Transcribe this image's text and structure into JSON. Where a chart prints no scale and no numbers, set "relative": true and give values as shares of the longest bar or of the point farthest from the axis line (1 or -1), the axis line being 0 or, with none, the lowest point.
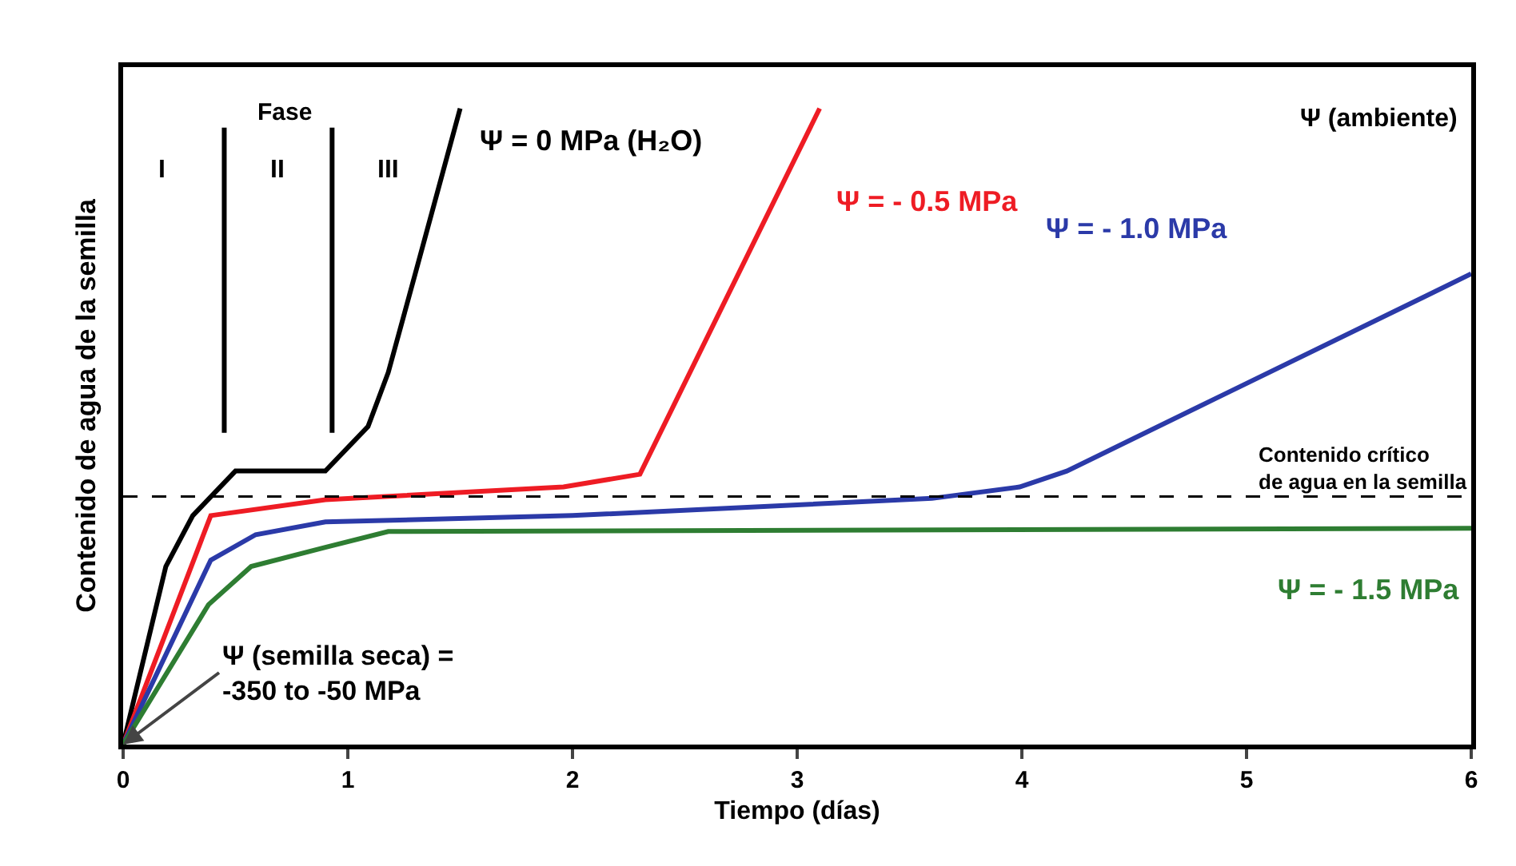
{
  "chart_data": {
    "type": "line",
    "relative": true,
    "xlabel": "Tiempo (días)",
    "ylabel": "Contenido de agua de la semilla",
    "xlim": [
      0,
      6
    ],
    "xticks": [
      0,
      1,
      2,
      3,
      4,
      5,
      6
    ],
    "grid": false,
    "legend": false,
    "line_style": "solid",
    "marker": "none",
    "series": [
      {
        "name": "Ψ = 0 MPa (H₂O)",
        "color": "#000000",
        "x": [
          0,
          0.19,
          0.31,
          0.5,
          0.9,
          1.09,
          1.18,
          1.3,
          1.5
        ],
        "values": [
          0,
          0.28,
          0.36,
          0.43,
          0.43,
          0.5,
          0.585,
          0.74,
          1
        ]
      },
      {
        "name": "Ψ = - 0.5 MPa",
        "color": "#ee1c24",
        "x": [
          0,
          0.39,
          0.9,
          1.96,
          2.3,
          3.1
        ],
        "values": [
          0,
          0.36,
          0.385,
          0.405,
          0.425,
          1
        ]
      },
      {
        "name": "Ψ = - 1.0 MPa",
        "color": "#2b3aa8",
        "x": [
          0,
          0.39,
          0.59,
          0.9,
          2,
          3.6,
          3.99,
          4.2,
          6
        ],
        "values": [
          0,
          0.29,
          0.33,
          0.35,
          0.36,
          0.387,
          0.405,
          0.43,
          0.74
        ]
      },
      {
        "name": "Ψ = - 1.5 MPa",
        "color": "#2e7d32",
        "x": [
          0,
          0.38,
          0.57,
          0.9,
          1.18,
          6
        ],
        "values": [
          0,
          0.22,
          0.28,
          0.31,
          0.335,
          0.34
        ]
      }
    ],
    "ref_lines": [
      {
        "axis": "y",
        "value": 0.39,
        "label": "Contenido crítico\nde agua en la semilla",
        "line_style": "dashed",
        "color": "#000000"
      },
      {
        "axis": "x",
        "value": 0.45,
        "label": null,
        "color": "#000000"
      },
      {
        "axis": "x",
        "value": 0.93,
        "label": null,
        "color": "#000000"
      }
    ],
    "annotations": [
      "Fase",
      "I",
      "II",
      "III",
      "Ψ (ambiente)",
      {
        "text": "Ψ (semilla seca) =\n-350 to -50 MPa",
        "x": 0,
        "y": 0
      }
    ]
  }
}
